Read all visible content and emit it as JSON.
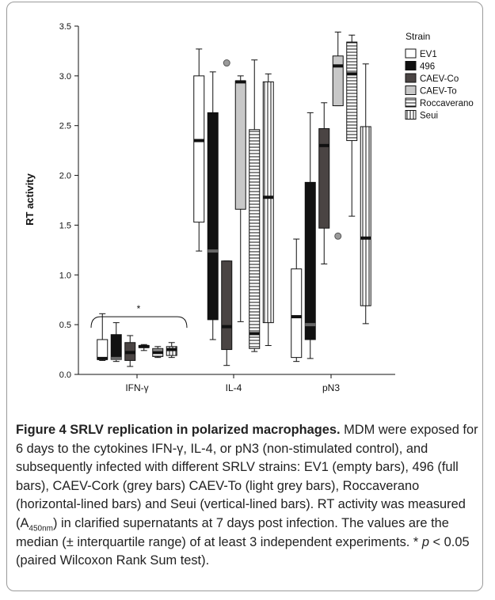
{
  "chart_data": {
    "type": "boxplot",
    "ylabel": "RT activity",
    "xlabel": "",
    "ylim": [
      0,
      3.5
    ],
    "yticks": [
      "0.0",
      "0.5",
      "1.0",
      "1.5",
      "2.0",
      "2.5",
      "3.0",
      "3.5"
    ],
    "categories": [
      "IFN-γ",
      "IL-4",
      "pN3"
    ],
    "legend": {
      "title": "Strain",
      "position": "top-right",
      "entries": [
        "EV1",
        "496",
        "CAEV-Co",
        "CAEV-To",
        "Roccaverano",
        "Seui"
      ]
    },
    "series": [
      {
        "name": "EV1",
        "style": "empty",
        "boxes": [
          {
            "category": "IFN-γ",
            "min": 0.14,
            "q1": 0.15,
            "median": 0.16,
            "q3": 0.35,
            "max": 0.61
          },
          {
            "category": "IL-4",
            "min": 1.24,
            "q1": 1.53,
            "median": 2.35,
            "q3": 3.0,
            "max": 3.27
          },
          {
            "category": "pN3",
            "min": 0.13,
            "q1": 0.17,
            "median": 0.58,
            "q3": 1.06,
            "max": 1.36
          }
        ]
      },
      {
        "name": "496",
        "style": "full",
        "boxes": [
          {
            "category": "IFN-γ",
            "min": 0.13,
            "q1": 0.15,
            "median": 0.16,
            "q3": 0.4,
            "max": 0.52
          },
          {
            "category": "IL-4",
            "min": 0.35,
            "q1": 0.55,
            "median": 1.24,
            "q3": 2.63,
            "max": 3.04
          },
          {
            "category": "pN3",
            "min": 0.16,
            "q1": 0.35,
            "median": 0.5,
            "q3": 1.93,
            "max": 2.63
          }
        ]
      },
      {
        "name": "CAEV-Co",
        "style": "grey",
        "boxes": [
          {
            "category": "IFN-γ",
            "min": 0.08,
            "q1": 0.14,
            "median": 0.22,
            "q3": 0.32,
            "max": 0.39
          },
          {
            "category": "IL-4",
            "min": 0.09,
            "q1": 0.25,
            "median": 0.48,
            "q3": 1.14,
            "max": 1.14,
            "outliers": [
              3.13
            ]
          },
          {
            "category": "pN3",
            "min": 1.11,
            "q1": 1.47,
            "median": 2.3,
            "q3": 2.47,
            "max": 2.73
          }
        ]
      },
      {
        "name": "CAEV-To",
        "style": "light-grey",
        "boxes": [
          {
            "category": "IFN-γ",
            "min": 0.24,
            "q1": 0.27,
            "median": 0.28,
            "q3": 0.29,
            "max": 0.3
          },
          {
            "category": "IL-4",
            "min": 0.53,
            "q1": 1.66,
            "median": 2.94,
            "q3": 2.95,
            "max": 3.0
          },
          {
            "category": "pN3",
            "min": 2.7,
            "q1": 2.7,
            "median": 3.1,
            "q3": 3.2,
            "max": 3.44,
            "outliers": [
              1.39
            ]
          }
        ]
      },
      {
        "name": "Roccaverano",
        "style": "horizontal-lined",
        "boxes": [
          {
            "category": "IFN-γ",
            "min": 0.17,
            "q1": 0.18,
            "median": 0.22,
            "q3": 0.26,
            "max": 0.28
          },
          {
            "category": "IL-4",
            "min": 0.23,
            "q1": 0.26,
            "median": 0.41,
            "q3": 2.46,
            "max": 3.16
          },
          {
            "category": "pN3",
            "min": 1.59,
            "q1": 2.35,
            "median": 3.02,
            "q3": 3.34,
            "max": 3.41
          }
        ]
      },
      {
        "name": "Seui",
        "style": "vertical-lined",
        "boxes": [
          {
            "category": "IFN-γ",
            "min": 0.17,
            "q1": 0.19,
            "median": 0.25,
            "q3": 0.28,
            "max": 0.32
          },
          {
            "category": "IL-4",
            "min": 0.29,
            "q1": 0.52,
            "median": 1.78,
            "q3": 2.94,
            "max": 3.02
          },
          {
            "category": "pN3",
            "min": 0.51,
            "q1": 0.69,
            "median": 1.37,
            "q3": 2.49,
            "max": 3.12
          }
        ]
      }
    ],
    "annotations": [
      {
        "type": "significance-bracket",
        "label": "*",
        "category": "IFN-γ",
        "y": 0.58
      }
    ],
    "colors": {
      "EV1": "#ffffff",
      "496": "#111111",
      "CAEV-Co": "#4a4443",
      "CAEV-To": "#c8c8c8",
      "Roccaverano": "#ffffff",
      "Seui": "#ffffff"
    }
  },
  "caption": {
    "figure_label": "Figure 4 SRLV replication in polarized macrophages.",
    "text_part1": " MDM were exposed for 6 days to the cytokines IFN-γ, IL-4, or pN3 (non-stimulated control), and subsequently infected with different SRLV strains: EV1 (empty bars), 496 (full bars), CAEV-Cork (grey bars) CAEV-To (light grey bars), Roccaverano (horizontal-lined bars) and Seui (vertical-lined bars). RT activity was measured (A",
    "subscript": "450nm",
    "text_part2": ") in clarified supernatants at 7 days post infection. The values are the median (± interquartile range) of at least 3 independent experiments. * ",
    "p_symbol": "p",
    "text_part3": " < 0.05 (paired Wilcoxon Rank Sum test)."
  }
}
